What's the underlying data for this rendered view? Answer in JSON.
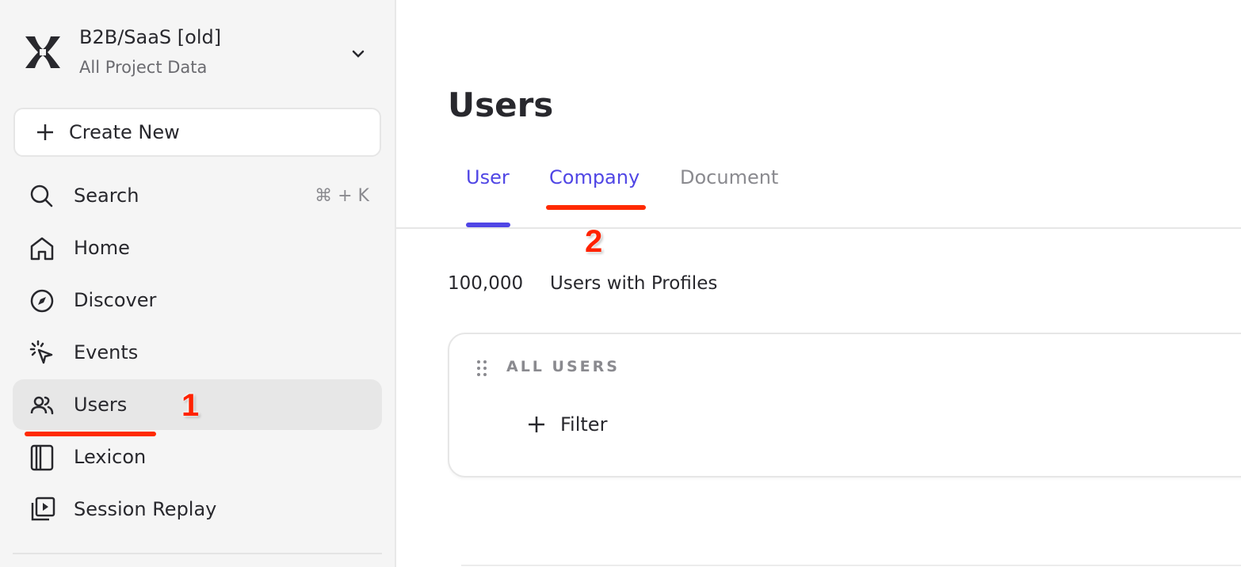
{
  "project": {
    "name": "B2B/SaaS [old]",
    "subtitle": "All Project Data"
  },
  "sidebar": {
    "create_label": "Create New",
    "items": [
      {
        "label": "Search",
        "icon": "search-icon",
        "shortcut": "⌘ + K"
      },
      {
        "label": "Home",
        "icon": "home-icon"
      },
      {
        "label": "Discover",
        "icon": "compass-icon"
      },
      {
        "label": "Events",
        "icon": "cursor-click-icon"
      },
      {
        "label": "Users",
        "icon": "users-icon",
        "active": true
      },
      {
        "label": "Lexicon",
        "icon": "book-icon"
      },
      {
        "label": "Session Replay",
        "icon": "replay-icon"
      }
    ]
  },
  "main": {
    "title": "Users",
    "tabs": [
      {
        "label": "User",
        "active": true
      },
      {
        "label": "Company"
      },
      {
        "label": "Document"
      }
    ],
    "count": "100,000",
    "count_label": "Users with Profiles",
    "card": {
      "title": "ALL USERS",
      "filter_label": "Filter"
    }
  },
  "annotations": [
    "1",
    "2"
  ],
  "colors": {
    "accent": "#5046e5",
    "annotation": "#ff2a00",
    "sidebar_bg": "#f5f5f5"
  }
}
